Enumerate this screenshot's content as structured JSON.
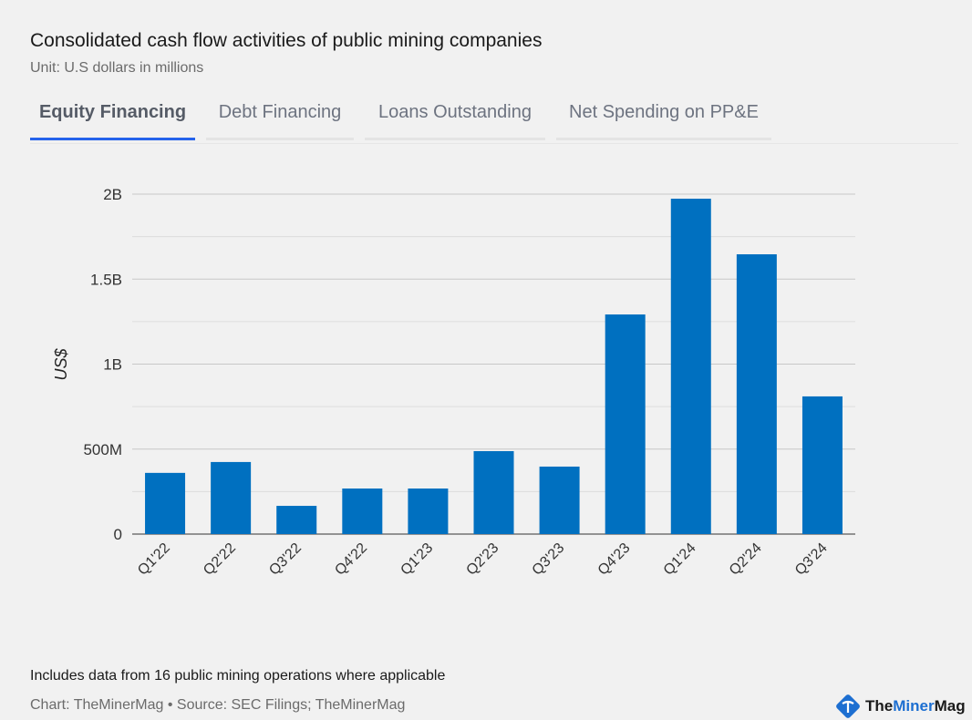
{
  "header": {
    "title": "Consolidated cash flow activities of public mining companies",
    "subtitle": "Unit: U.S dollars in millions"
  },
  "tabs": [
    {
      "label": "Equity Financing",
      "active": true
    },
    {
      "label": "Debt Financing",
      "active": false
    },
    {
      "label": "Loans Outstanding",
      "active": false
    },
    {
      "label": "Net Spending on PP&E",
      "active": false
    }
  ],
  "chart_data": {
    "type": "bar",
    "title": "Equity Financing",
    "xlabel": "",
    "ylabel": "US$",
    "categories": [
      "Q1'22",
      "Q2'22",
      "Q3'22",
      "Q4'22",
      "Q1'23",
      "Q2'23",
      "Q3'23",
      "Q4'23",
      "Q1'24",
      "Q2'24",
      "Q3'24"
    ],
    "values": [
      360,
      424,
      166,
      268,
      268,
      488,
      397,
      1292,
      1973,
      1646,
      810
    ],
    "unit": "millions USD",
    "ylim": [
      0,
      2000
    ],
    "yticks": [
      0,
      500,
      1000,
      1500,
      2000
    ],
    "ytick_labels": [
      "0",
      "500M",
      "1B",
      "1.5B",
      "2B"
    ],
    "grid": true,
    "color": "#0070c0"
  },
  "footer": {
    "note": "Includes data from 16 public mining operations where applicable",
    "source": "Chart: TheMinerMag • Source: SEC Filings; TheMinerMag",
    "logo_text_1": "The",
    "logo_text_2": "Miner",
    "logo_text_3": "Mag"
  }
}
